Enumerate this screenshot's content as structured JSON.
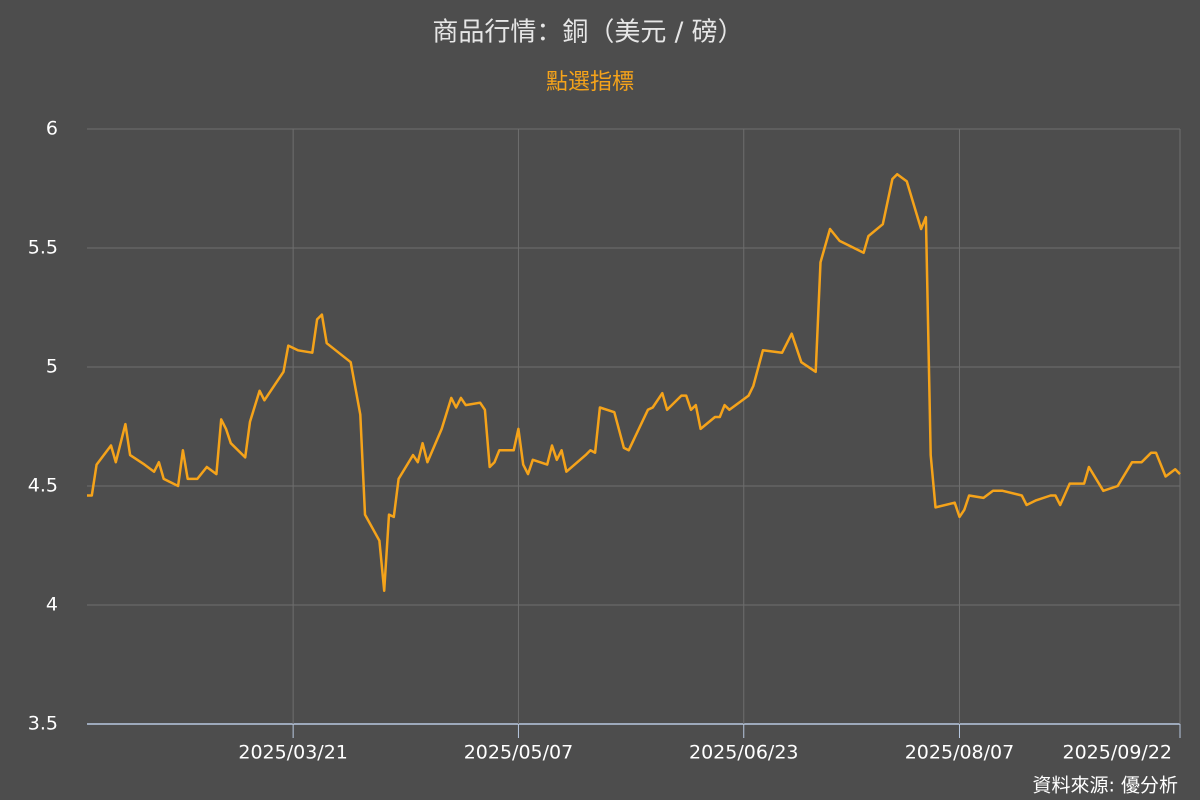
{
  "chart_data": {
    "type": "line",
    "title": "商品行情：銅（美元 / 磅）",
    "subtitle": "點選指標",
    "source": "資料來源: 優分析",
    "x": [
      "2025/02/06",
      "2025/02/07",
      "2025/02/08",
      "2025/02/11",
      "2025/02/12",
      "2025/02/14",
      "2025/02/15",
      "2025/02/18",
      "2025/02/20",
      "2025/02/21",
      "2025/02/22",
      "2025/02/25",
      "2025/02/26",
      "2025/02/27",
      "2025/03/01",
      "2025/03/03",
      "2025/03/05",
      "2025/03/06",
      "2025/03/07",
      "2025/03/08",
      "2025/03/11",
      "2025/03/12",
      "2025/03/14",
      "2025/03/15",
      "2025/03/19",
      "2025/03/20",
      "2025/03/22",
      "2025/03/25",
      "2025/03/26",
      "2025/03/27",
      "2025/03/28",
      "2025/04/02",
      "2025/04/04",
      "2025/04/05",
      "2025/04/08",
      "2025/04/09",
      "2025/04/10",
      "2025/04/11",
      "2025/04/12",
      "2025/04/15",
      "2025/04/16",
      "2025/04/17",
      "2025/04/18",
      "2025/04/21",
      "2025/04/23",
      "2025/04/24",
      "2025/04/25",
      "2025/04/26",
      "2025/04/29",
      "2025/04/30",
      "2025/05/01",
      "2025/05/02",
      "2025/05/03",
      "2025/05/06",
      "2025/05/07",
      "2025/05/08",
      "2025/05/09",
      "2025/05/10",
      "2025/05/13",
      "2025/05/14",
      "2025/05/15",
      "2025/05/16",
      "2025/05/17",
      "2025/05/21",
      "2025/05/22",
      "2025/05/23",
      "2025/05/24",
      "2025/05/27",
      "2025/05/29",
      "2025/05/30",
      "2025/06/03",
      "2025/06/04",
      "2025/06/06",
      "2025/06/07",
      "2025/06/10",
      "2025/06/11",
      "2025/06/12",
      "2025/06/13",
      "2025/06/14",
      "2025/06/17",
      "2025/06/18",
      "2025/06/19",
      "2025/06/20",
      "2025/06/24",
      "2025/06/25",
      "2025/06/27",
      "2025/07/01",
      "2025/07/03",
      "2025/07/05",
      "2025/07/08",
      "2025/07/09",
      "2025/07/11",
      "2025/07/13",
      "2025/07/16",
      "2025/07/18",
      "2025/07/19",
      "2025/07/22",
      "2025/07/24",
      "2025/07/25",
      "2025/07/27",
      "2025/07/30",
      "2025/07/31",
      "2025/08/01",
      "2025/08/02",
      "2025/08/06",
      "2025/08/07",
      "2025/08/08",
      "2025/08/09",
      "2025/08/12",
      "2025/08/14",
      "2025/08/16",
      "2025/08/20",
      "2025/08/21",
      "2025/08/23",
      "2025/08/26",
      "2025/08/27",
      "2025/08/28",
      "2025/08/30",
      "2025/09/02",
      "2025/09/03",
      "2025/09/06",
      "2025/09/09",
      "2025/09/12",
      "2025/09/14",
      "2025/09/16",
      "2025/09/17",
      "2025/09/19",
      "2025/09/21",
      "2025/09/22"
    ],
    "values": [
      4.46,
      4.46,
      4.59,
      4.67,
      4.6,
      4.76,
      4.63,
      4.59,
      4.56,
      4.6,
      4.53,
      4.5,
      4.65,
      4.53,
      4.53,
      4.58,
      4.55,
      4.78,
      4.74,
      4.68,
      4.62,
      4.77,
      4.9,
      4.86,
      4.98,
      5.09,
      5.07,
      5.06,
      5.2,
      5.22,
      5.1,
      5.02,
      4.8,
      4.38,
      4.27,
      4.06,
      4.38,
      4.37,
      4.53,
      4.63,
      4.6,
      4.68,
      4.6,
      4.74,
      4.87,
      4.83,
      4.87,
      4.84,
      4.85,
      4.82,
      4.58,
      4.6,
      4.65,
      4.65,
      4.74,
      4.59,
      4.55,
      4.61,
      4.59,
      4.67,
      4.61,
      4.65,
      4.56,
      4.63,
      4.65,
      4.64,
      4.83,
      4.81,
      4.66,
      4.65,
      4.82,
      4.83,
      4.89,
      4.82,
      4.88,
      4.88,
      4.82,
      4.84,
      4.74,
      4.79,
      4.79,
      4.84,
      4.82,
      4.88,
      4.92,
      5.07,
      5.06,
      5.14,
      5.02,
      4.98,
      5.44,
      5.58,
      5.53,
      5.5,
      5.48,
      5.55,
      5.6,
      5.79,
      5.81,
      5.78,
      5.58,
      5.63,
      4.63,
      4.41,
      4.43,
      4.37,
      4.4,
      4.46,
      4.45,
      4.48,
      4.48,
      4.46,
      4.42,
      4.44,
      4.46,
      4.46,
      4.42,
      4.51,
      4.51,
      4.58,
      4.48,
      4.5,
      4.6,
      4.6,
      4.64,
      4.64,
      4.54,
      4.57,
      4.55
    ],
    "color": "#f5a31a",
    "xlim": [
      "2025/02/06",
      "2025/09/22"
    ],
    "xticks": [
      "2025/03/21",
      "2025/05/07",
      "2025/06/23",
      "2025/08/07",
      "2025/09/22"
    ],
    "ylim": [
      3.5,
      6
    ],
    "yticks": [
      3.5,
      4,
      4.5,
      5,
      5.5,
      6
    ],
    "grid": true
  }
}
